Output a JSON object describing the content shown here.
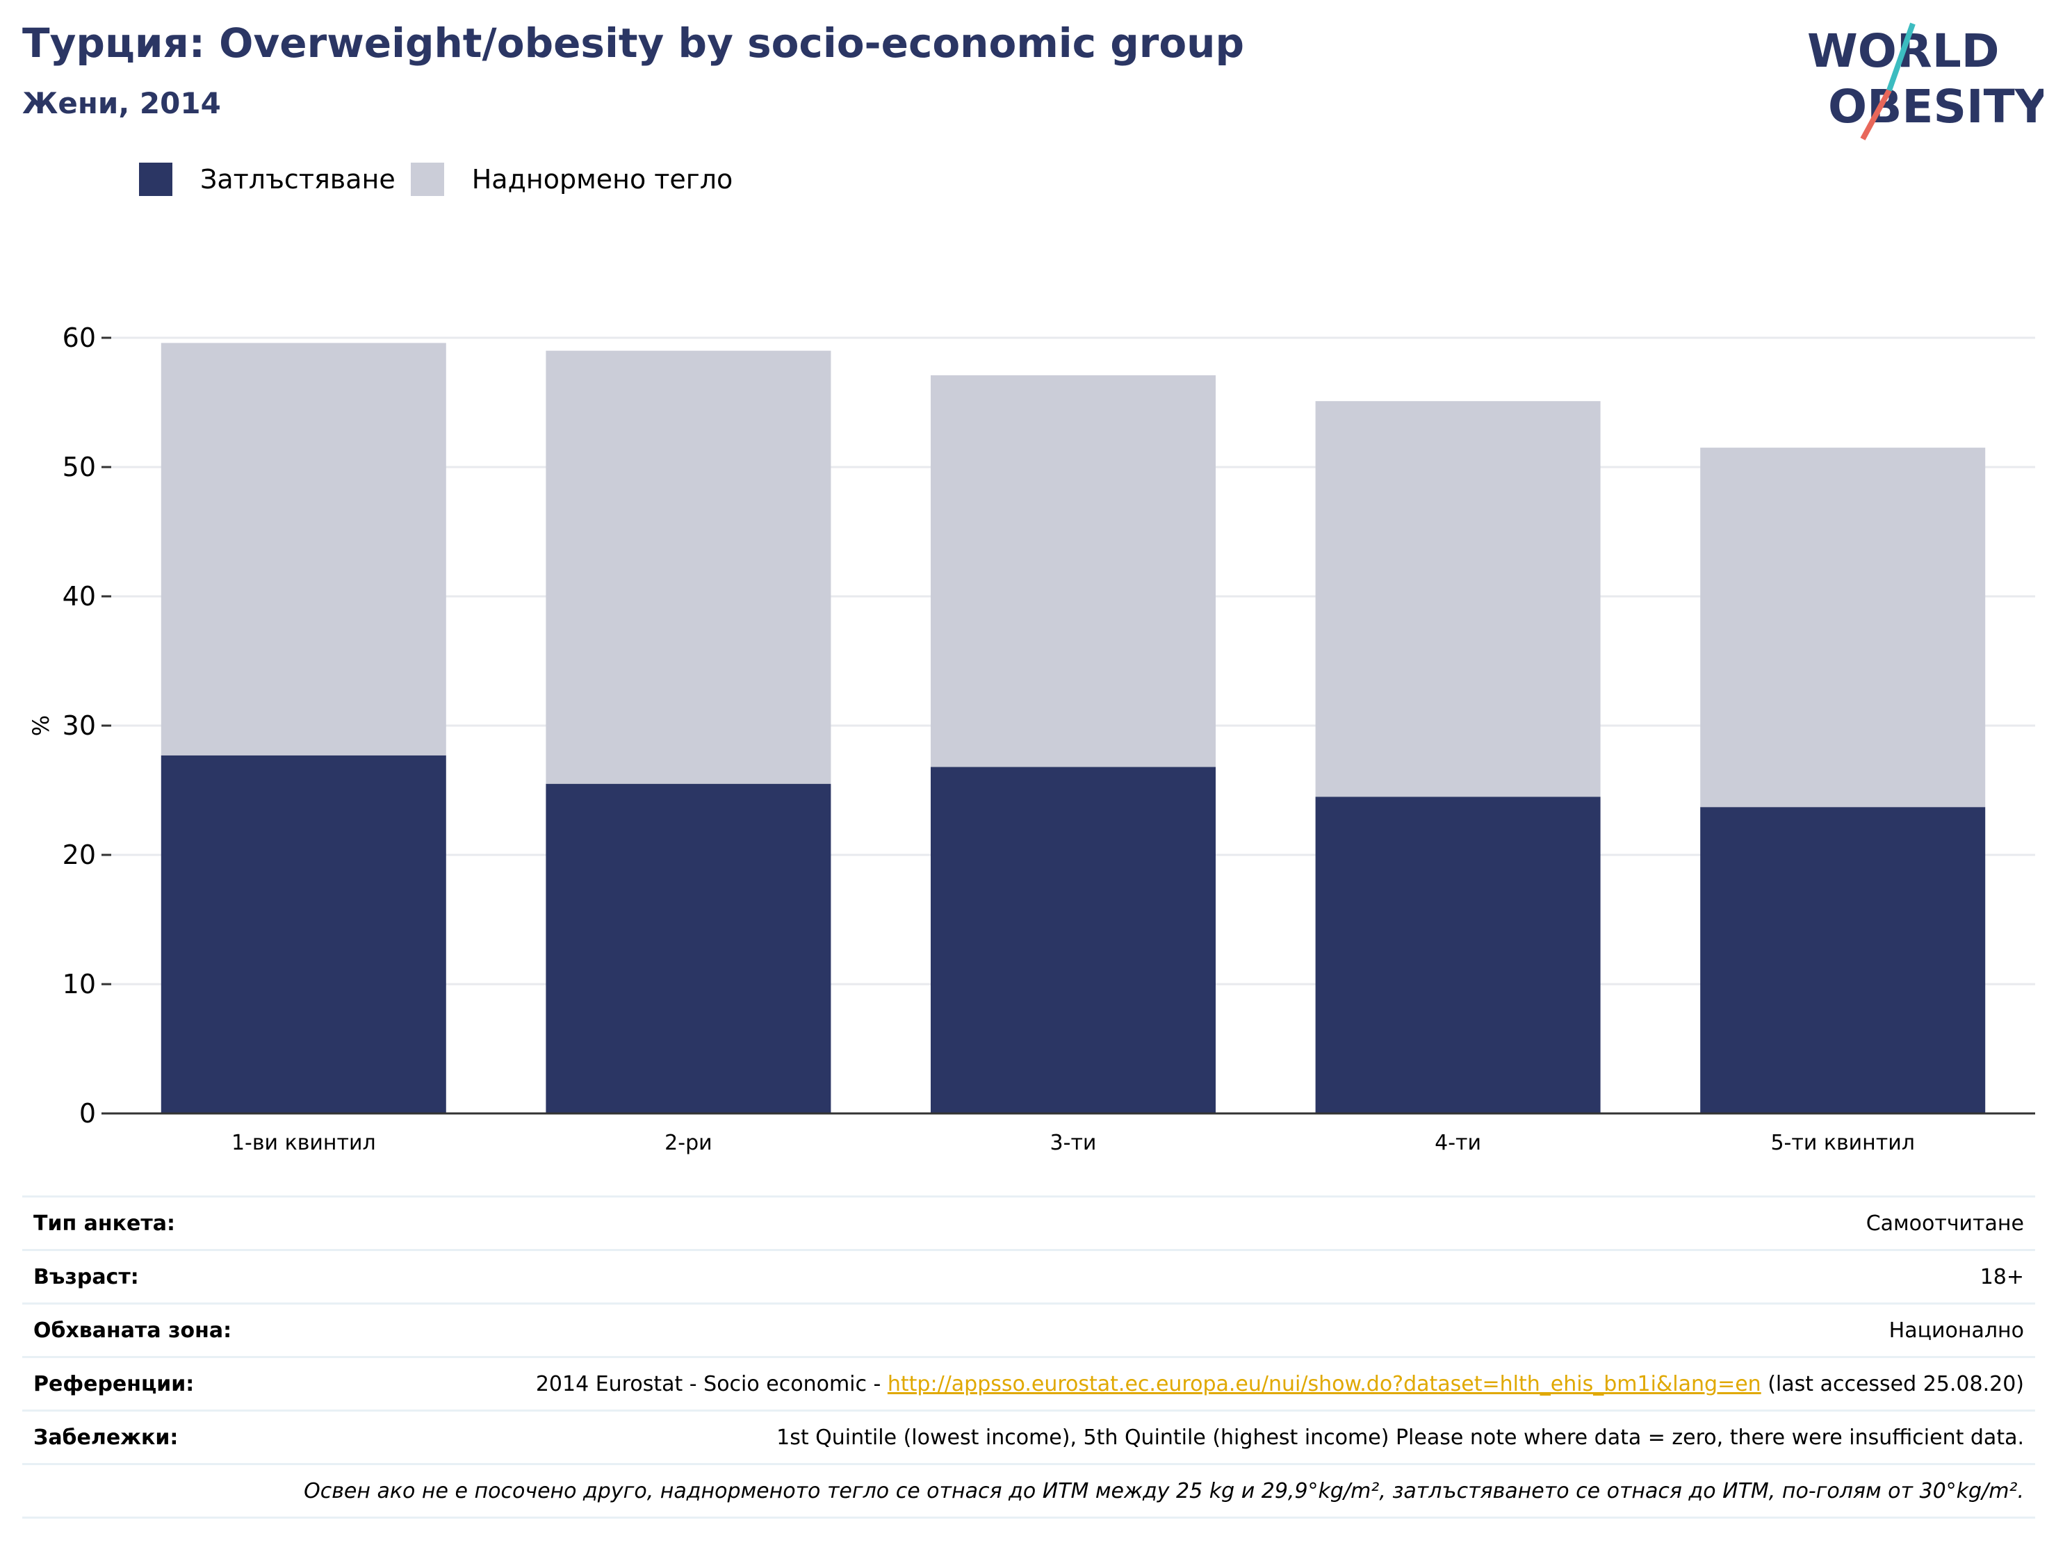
{
  "header": {
    "title": "Турция: Overweight/obesity by socio-economic group",
    "subtitle": "Жени, 2014"
  },
  "logo": {
    "line1": "WORLD",
    "line2": "OBESITY",
    "icon": "world-obesity-logo"
  },
  "colors": {
    "obesity": "#2b3664",
    "overweight": "#cbcdd8",
    "title": "#2b3664",
    "grid": "#e8eaee",
    "link": "#e0a800"
  },
  "legend": {
    "items": [
      {
        "label": "Затлъстяване"
      },
      {
        "label": "Наднормено тегло"
      }
    ]
  },
  "chart_data": {
    "type": "bar",
    "stacked": true,
    "categories": [
      "1-ви квинтил",
      "2-ри",
      "3-ти",
      "4-ти",
      "5-ти квинтил"
    ],
    "series": [
      {
        "name": "Затлъстяване",
        "values": [
          27.7,
          25.5,
          26.8,
          24.5,
          23.7
        ]
      },
      {
        "name": "Наднормено тегло",
        "values": [
          31.9,
          33.5,
          30.3,
          30.6,
          27.8
        ]
      }
    ],
    "totals": [
      59.6,
      59.0,
      57.1,
      55.1,
      51.5
    ],
    "ylabel": "%",
    "yticks": [
      0,
      10,
      20,
      30,
      40,
      50,
      60
    ],
    "ylim": [
      0,
      60
    ],
    "grid": true,
    "legend_position": "top-left"
  },
  "meta": {
    "survey_type": {
      "label": "Тип анкета:",
      "value": "Самоотчитане"
    },
    "age": {
      "label": "Възраст:",
      "value": "18+"
    },
    "area": {
      "label": "Обхваната зона:",
      "value": "Национално"
    },
    "references": {
      "label": "Референции:",
      "prefix": "2014 Eurostat - Socio economic - ",
      "link": "http://appsso.eurostat.ec.europa.eu/nui/show.do?dataset=hlth_ehis_bm1i&lang=en",
      "suffix": " (last accessed 25.08.20)"
    },
    "notes": {
      "label": "Забележки:",
      "value": "1st Quintile (lowest income), 5th Quintile (highest income) Please note where data = zero, there were insufficient data."
    },
    "footnote": "Освен ако не е посочено друго, наднорменото тегло се отнася до ИТМ между 25 kg и 29,9°kg/m², затлъстяването се отнася до ИТМ, по-голям от 30°kg/m²."
  }
}
